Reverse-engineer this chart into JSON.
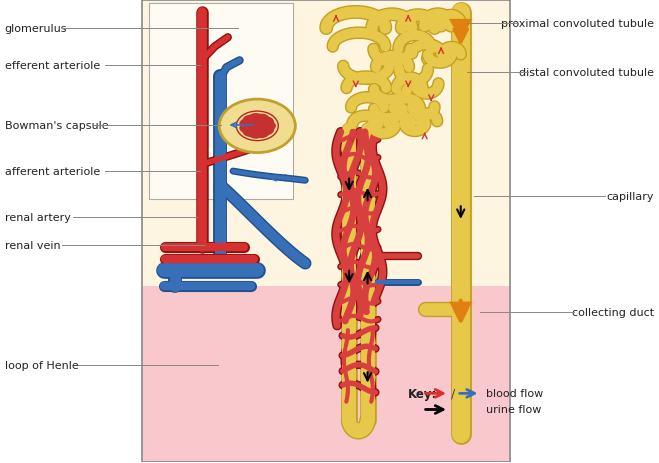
{
  "bg_color": "#ffffff",
  "panel_bg_top": "#fdf5e0",
  "panel_bg_bottom": "#f8c8cc",
  "inner_box_bg": "#fdfaf0",
  "artery_color": "#d63030",
  "vein_color": "#3870b8",
  "tubule_fill": "#e8c84a",
  "tubule_outline": "#c4a020",
  "glom_fill": "#cc3030",
  "capsule_fill": "#f0dd90",
  "capsule_outline": "#c0a030",
  "orange_color": "#e08010",
  "capillary_red": "#d84040",
  "label_color": "#222222",
  "fontsize": 8.0,
  "left_labels": [
    [
      "glomerulus",
      0.94
    ],
    [
      "efferent arteriole",
      0.86
    ],
    [
      "Bowman's capsule",
      0.73
    ],
    [
      "afferent arteriole",
      0.63
    ],
    [
      "renal artery",
      0.53
    ],
    [
      "renal vein",
      0.47
    ],
    [
      "loop of Henle",
      0.21
    ]
  ],
  "right_labels": [
    [
      "proximal convoluted tubule",
      0.95
    ],
    [
      "distal convoluted tubule",
      0.845
    ],
    [
      "capillary",
      0.575
    ],
    [
      "collecting duct",
      0.325
    ]
  ]
}
